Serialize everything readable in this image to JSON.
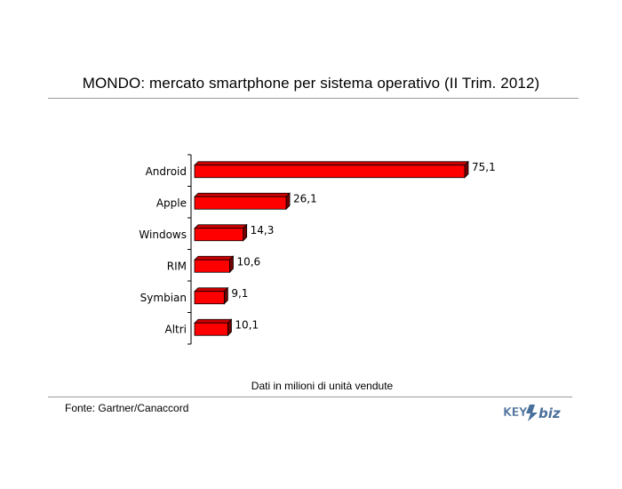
{
  "chart_data": {
    "type": "bar",
    "orientation": "horizontal",
    "title": "MONDO: mercato smartphone per sistema operativo (II Trim. 2012)",
    "categories": [
      "Android",
      "Apple",
      "Windows",
      "RIM",
      "Symbian",
      "Altri"
    ],
    "values": [
      75.1,
      26.1,
      14.3,
      10.6,
      9.1,
      10.1
    ],
    "value_labels": [
      "75,1",
      "26,1",
      "14,3",
      "10,6",
      "9,1",
      "10,1"
    ],
    "bar_color": "#ff0000",
    "grid": false,
    "legend": "none"
  },
  "note": "Dati in milioni di unità vendute",
  "source": "Fonte: Gartner/Canaccord",
  "logo": {
    "text": "KEY4biz",
    "color": "#4a6f9a"
  }
}
